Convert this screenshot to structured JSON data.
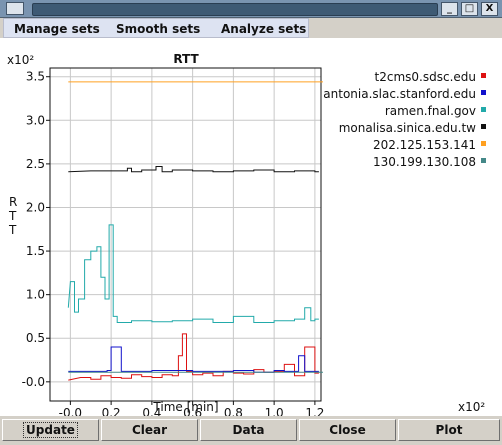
{
  "menubar": {
    "items": [
      "Manage sets",
      "Smooth sets",
      "Analyze sets"
    ]
  },
  "titlebar": {
    "buttons": [
      "_",
      "□",
      "X"
    ]
  },
  "chart_data": {
    "type": "line",
    "title": "RTT",
    "xlabel": "Time [min]",
    "ylabel": "R\nT\nT",
    "x_multiplier": "x10²",
    "y_multiplier": "x10²",
    "xlim": [
      -0.1,
      1.23
    ],
    "ylim": [
      -0.22,
      3.6
    ],
    "x_ticks": [
      -0.0,
      0.2,
      0.4,
      0.6,
      0.8,
      1.0,
      1.2
    ],
    "x_tick_labels": [
      "-0.0",
      "0.2",
      "0.4",
      "0.6",
      "0.8",
      "1.0",
      "1.2"
    ],
    "y_ticks": [
      -0.0,
      0.5,
      1.0,
      1.5,
      2.0,
      2.5,
      3.0,
      3.5
    ],
    "y_tick_labels": [
      "-0.0",
      "0.5",
      "1.0",
      "1.5",
      "2.0",
      "2.5",
      "3.0",
      "3.5"
    ],
    "grid": true,
    "legend_position": "right",
    "series": [
      {
        "name": "t2cms0.sdsc.edu",
        "color": "#dd1111",
        "x": [
          -0.01,
          0.05,
          0.1,
          0.15,
          0.2,
          0.25,
          0.3,
          0.35,
          0.4,
          0.45,
          0.5,
          0.53,
          0.55,
          0.57,
          0.6,
          0.65,
          0.7,
          0.75,
          0.8,
          0.85,
          0.9,
          0.95,
          1.0,
          1.05,
          1.1,
          1.15,
          1.2
        ],
        "y": [
          0.02,
          0.05,
          0.03,
          0.07,
          0.05,
          0.04,
          0.08,
          0.06,
          0.05,
          0.08,
          0.07,
          0.3,
          0.55,
          0.12,
          0.08,
          0.1,
          0.07,
          0.12,
          0.1,
          0.09,
          0.14,
          0.11,
          0.12,
          0.2,
          0.07,
          0.4,
          0.1
        ]
      },
      {
        "name": "antonia.slac.stanford.edu",
        "color": "#1111cc",
        "x": [
          -0.01,
          0.1,
          0.18,
          0.2,
          0.25,
          0.4,
          0.6,
          0.8,
          0.9,
          1.0,
          1.05,
          1.12,
          1.15,
          1.2
        ],
        "y": [
          0.12,
          0.12,
          0.13,
          0.4,
          0.12,
          0.13,
          0.12,
          0.13,
          0.11,
          0.13,
          0.12,
          0.3,
          0.12,
          0.12
        ]
      },
      {
        "name": "ramen.fnal.gov",
        "color": "#22aaaa",
        "x": [
          -0.01,
          0.0,
          0.02,
          0.04,
          0.07,
          0.1,
          0.13,
          0.15,
          0.17,
          0.19,
          0.21,
          0.23,
          0.3,
          0.4,
          0.5,
          0.6,
          0.7,
          0.8,
          0.9,
          1.0,
          1.1,
          1.15,
          1.18,
          1.2
        ],
        "y": [
          0.85,
          1.15,
          0.8,
          0.95,
          1.4,
          1.5,
          1.55,
          1.2,
          0.95,
          1.8,
          0.75,
          0.68,
          0.7,
          0.69,
          0.7,
          0.72,
          0.68,
          0.75,
          0.68,
          0.7,
          0.72,
          0.85,
          0.7,
          0.72
        ]
      },
      {
        "name": "monalisa.sinica.edu.tw",
        "color": "#111111",
        "x": [
          -0.01,
          0.1,
          0.2,
          0.28,
          0.3,
          0.35,
          0.42,
          0.45,
          0.5,
          0.6,
          0.7,
          0.8,
          0.9,
          1.0,
          1.1,
          1.2
        ],
        "y": [
          2.41,
          2.42,
          2.42,
          2.45,
          2.41,
          2.43,
          2.47,
          2.41,
          2.43,
          2.42,
          2.41,
          2.42,
          2.43,
          2.41,
          2.42,
          2.41
        ]
      },
      {
        "name": "202.125.153.141",
        "color": "#ffa020",
        "x": [
          -0.01,
          1.22
        ],
        "y": [
          3.44,
          3.44
        ]
      },
      {
        "name": "130.199.130.108",
        "color": "#448888",
        "x": [
          -0.01,
          1.22
        ],
        "y": [
          0.11,
          0.11
        ]
      }
    ]
  },
  "footer": {
    "buttons": [
      "Update",
      "Clear",
      "Data",
      "Close",
      "Plot"
    ]
  }
}
